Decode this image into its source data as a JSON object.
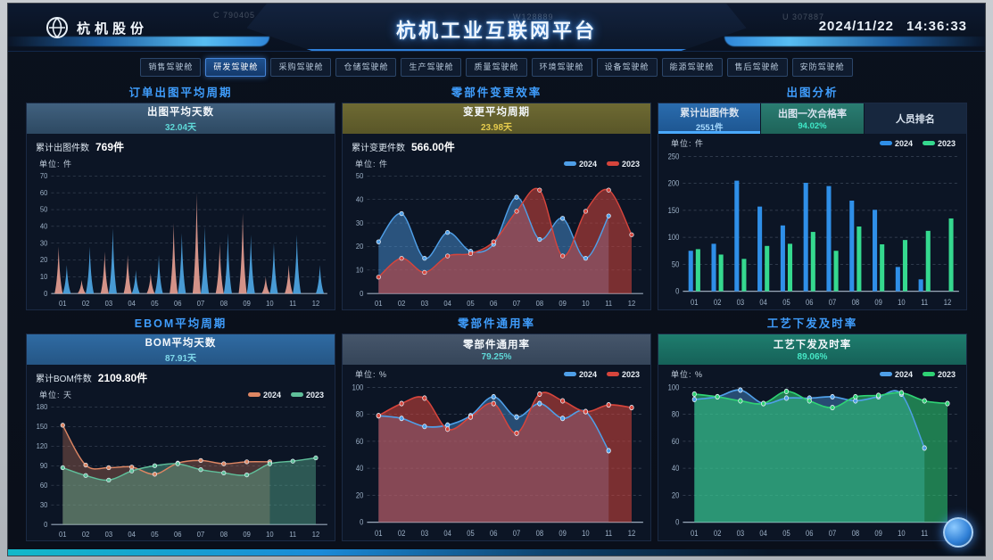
{
  "header": {
    "logo_text": "杭机股份",
    "title": "杭机工业互联网平台",
    "date": "2024/11/22",
    "time": "14:36:33"
  },
  "watermarks": [
    "C 790405",
    "W128889",
    "U 307887"
  ],
  "tabs": [
    {
      "label": "销售驾驶舱",
      "active": false
    },
    {
      "label": "研发驾驶舱",
      "active": true
    },
    {
      "label": "采购驾驶舱",
      "active": false
    },
    {
      "label": "仓储驾驶舱",
      "active": false
    },
    {
      "label": "生产驾驶舱",
      "active": false
    },
    {
      "label": "质量驾驶舱",
      "active": false
    },
    {
      "label": "环境驾驶舱",
      "active": false
    },
    {
      "label": "设备驾驶舱",
      "active": false
    },
    {
      "label": "能源驾驶舱",
      "active": false
    },
    {
      "label": "售后驾驶舱",
      "active": false
    },
    {
      "label": "安防驾驶舱",
      "active": false
    }
  ],
  "panels": {
    "p1": {
      "section_title": "订单出图平均周期",
      "header_title": "出图平均天数",
      "header_value": "32.04天",
      "stat_label": "累计出图件数",
      "stat_value": "769件",
      "unit": "单位: 件"
    },
    "p2": {
      "section_title": "零部件变更效率",
      "header_title": "变更平均周期",
      "header_value": "23.98天",
      "stat_label": "累计变更件数",
      "stat_value": "566.00件",
      "unit": "单位: 件"
    },
    "p3": {
      "section_title": "出图分析",
      "tabs": [
        {
          "label": "累计出图件数",
          "value": "2551件"
        },
        {
          "label": "出图一次合格率",
          "value": "94.02%"
        },
        {
          "label": "人员排名",
          "value": ""
        }
      ],
      "unit": "单位: 件"
    },
    "p4": {
      "section_title": "EBOM平均周期",
      "header_title": "BOM平均天数",
      "header_value": "87.91天",
      "stat_label": "累计BOM件数",
      "stat_value": "2109.80件",
      "unit": "单位: 天"
    },
    "p5": {
      "section_title": "零部件通用率",
      "header_title": "零部件通用率",
      "header_value": "79.25%",
      "unit": "单位: %"
    },
    "p6": {
      "section_title": "工艺下发及时率",
      "header_title": "工艺下发及时率",
      "header_value": "89.06%",
      "unit": "单位: %"
    }
  },
  "colors": {
    "accent": "#3f9dfc",
    "blue_2024": "#4f9fe8",
    "red_2023": "#d6453c",
    "green_2023": "#35d98f",
    "orange_2024": "#dd8663",
    "spike_pink": "#e9a093"
  },
  "chart_data": [
    {
      "type": "spike",
      "title": "订单出图平均周期",
      "xlabel": "",
      "ylabel": "件",
      "categories": [
        "01",
        "02",
        "03",
        "04",
        "05",
        "06",
        "07",
        "08",
        "09",
        "10",
        "11",
        "12"
      ],
      "ylim": [
        0,
        70
      ],
      "ytick": 10,
      "grid": true,
      "legend_position": "none",
      "series": [
        {
          "name": "",
          "color": "#e9a093",
          "values": [
            28,
            8,
            25,
            23,
            12,
            42,
            60,
            30,
            48,
            10,
            17,
            null
          ]
        },
        {
          "name": "",
          "color": "#4fa8e8",
          "values": [
            17,
            28,
            39,
            14,
            23,
            36,
            40,
            36,
            35,
            30,
            35,
            17
          ]
        }
      ]
    },
    {
      "type": "line",
      "title": "零部件变更效率",
      "xlabel": "",
      "ylabel": "件",
      "categories": [
        "01",
        "02",
        "03",
        "04",
        "05",
        "06",
        "07",
        "08",
        "09",
        "10",
        "11",
        "12"
      ],
      "ylim": [
        0,
        50
      ],
      "ytick": 10,
      "grid": true,
      "legend_position": "top-right",
      "series": [
        {
          "name": "2024",
          "color": "#4f9fe8",
          "fill_opacity": 0.45,
          "values": [
            22,
            34,
            15,
            26,
            18,
            21,
            41,
            23,
            32,
            15,
            33,
            null
          ]
        },
        {
          "name": "2023",
          "color": "#d6453c",
          "fill_opacity": 0.55,
          "values": [
            7,
            15,
            9,
            16,
            17,
            22,
            35,
            44,
            16,
            35,
            44,
            25
          ]
        }
      ]
    },
    {
      "type": "bar",
      "title": "出图分析 - 累计出图件数",
      "xlabel": "",
      "ylabel": "件",
      "categories": [
        "01",
        "02",
        "03",
        "04",
        "05",
        "06",
        "07",
        "08",
        "09",
        "10",
        "11",
        "12"
      ],
      "ylim": [
        0,
        250
      ],
      "ytick": 50,
      "grid": true,
      "legend_position": "top-right",
      "series": [
        {
          "name": "2024",
          "color": "#2f8fe8",
          "values": [
            75,
            88,
            205,
            157,
            122,
            201,
            195,
            168,
            151,
            45,
            22,
            null
          ]
        },
        {
          "name": "2023",
          "color": "#35d98f",
          "values": [
            78,
            68,
            60,
            84,
            88,
            110,
            75,
            120,
            87,
            95,
            112,
            135
          ]
        }
      ]
    },
    {
      "type": "line",
      "title": "EBOM平均周期",
      "xlabel": "",
      "ylabel": "天",
      "categories": [
        "01",
        "02",
        "03",
        "04",
        "05",
        "06",
        "07",
        "08",
        "09",
        "10",
        "11",
        "12"
      ],
      "ylim": [
        0,
        180
      ],
      "ytick": 30,
      "grid": true,
      "legend_position": "top-right",
      "series": [
        {
          "name": "2024",
          "color": "#dd8663",
          "fill_opacity": 0.3,
          "values": [
            152,
            91,
            87,
            88,
            77,
            94,
            98,
            93,
            96,
            96,
            null,
            null
          ]
        },
        {
          "name": "2023",
          "color": "#5fbf9a",
          "fill_opacity": 0.4,
          "values": [
            87,
            75,
            68,
            82,
            90,
            93,
            84,
            79,
            76,
            93,
            97,
            102
          ]
        }
      ]
    },
    {
      "type": "line",
      "title": "零部件通用率",
      "xlabel": "",
      "ylabel": "%",
      "categories": [
        "01",
        "02",
        "03",
        "04",
        "05",
        "06",
        "07",
        "08",
        "09",
        "10",
        "11",
        "12"
      ],
      "ylim": [
        0,
        100
      ],
      "ytick": 20,
      "grid": true,
      "legend_position": "top-right",
      "series": [
        {
          "name": "2024",
          "color": "#4f9fe8",
          "fill_opacity": 0.4,
          "values": [
            79,
            77,
            71,
            72,
            79,
            93,
            78,
            88,
            77,
            82,
            53,
            null
          ]
        },
        {
          "name": "2023",
          "color": "#d6453c",
          "fill_opacity": 0.55,
          "values": [
            79,
            88,
            92,
            69,
            78,
            88,
            66,
            95,
            90,
            82,
            87,
            85
          ]
        }
      ]
    },
    {
      "type": "line",
      "title": "工艺下发及时率",
      "xlabel": "",
      "ylabel": "%",
      "categories": [
        "01",
        "02",
        "03",
        "04",
        "05",
        "06",
        "07",
        "08",
        "09",
        "10",
        "11",
        "12"
      ],
      "ylim": [
        0,
        100
      ],
      "ytick": 20,
      "grid": true,
      "legend_position": "top-right",
      "series": [
        {
          "name": "2024",
          "color": "#4f9fe8",
          "fill_opacity": 0.4,
          "values": [
            91,
            93,
            98,
            88,
            92,
            92,
            93,
            90,
            93,
            95,
            55,
            null
          ]
        },
        {
          "name": "2023",
          "color": "#2fd274",
          "fill_opacity": 0.55,
          "values": [
            95,
            93,
            90,
            88,
            97,
            90,
            85,
            93,
            94,
            96,
            90,
            88
          ]
        }
      ]
    }
  ]
}
